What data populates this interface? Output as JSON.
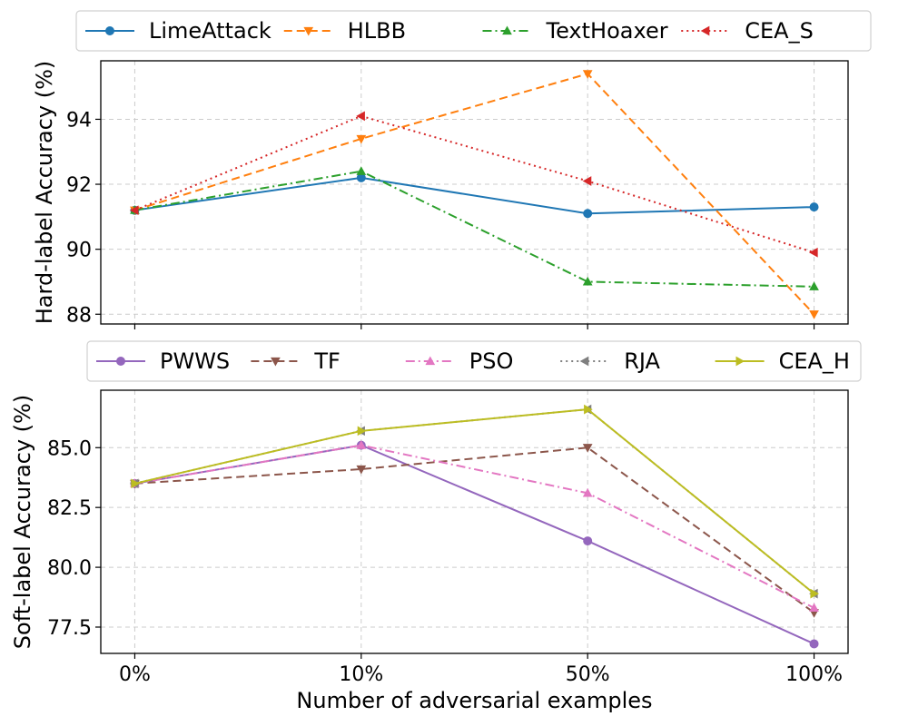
{
  "chart_data": [
    {
      "type": "line",
      "ylabel": "Hard-label Accuracy (%)",
      "xlabel": "",
      "categories": [
        "0%",
        "10%",
        "50%",
        "100%"
      ],
      "ylim": [
        87.7,
        95.8
      ],
      "yticks": [
        88,
        90,
        92,
        94
      ],
      "ytick_labels": [
        "88",
        "90",
        "92",
        "94"
      ],
      "grid": true,
      "legend": {
        "placement": "top",
        "columns": 4
      },
      "series": [
        {
          "name": "LimeAttack",
          "values": [
            91.2,
            92.2,
            91.1,
            91.3
          ],
          "color": "#1f77b4",
          "dash": "solid",
          "marker": "circle"
        },
        {
          "name": "HLBB",
          "values": [
            91.2,
            93.4,
            95.4,
            88.0
          ],
          "color": "#ff7f0e",
          "dash": "dashed",
          "marker": "triangle-down"
        },
        {
          "name": "TextHoaxer",
          "values": [
            91.2,
            92.4,
            89.0,
            88.85
          ],
          "color": "#2ca02c",
          "dash": "dashdot",
          "marker": "triangle-up"
        },
        {
          "name": "CEA_S",
          "values": [
            91.2,
            94.1,
            92.1,
            89.9
          ],
          "color": "#d62728",
          "dash": "dotted",
          "marker": "triangle-left"
        }
      ]
    },
    {
      "type": "line",
      "ylabel": "Soft-label Accuracy (%)",
      "xlabel": "Number of adversarial examples",
      "categories": [
        "0%",
        "10%",
        "50%",
        "100%"
      ],
      "ylim": [
        76.4,
        87.4
      ],
      "yticks": [
        77.5,
        80.0,
        82.5,
        85.0
      ],
      "ytick_labels": [
        "77.5",
        "80.0",
        "82.5",
        "85.0"
      ],
      "grid": true,
      "legend": {
        "placement": "top",
        "columns": 5
      },
      "series": [
        {
          "name": "PWWS",
          "values": [
            83.5,
            85.1,
            81.1,
            76.8
          ],
          "color": "#9467bd",
          "dash": "solid",
          "marker": "circle"
        },
        {
          "name": "TF",
          "values": [
            83.5,
            84.1,
            85.0,
            78.1
          ],
          "color": "#8c564b",
          "dash": "dashed",
          "marker": "triangle-down"
        },
        {
          "name": "PSO",
          "values": [
            83.5,
            85.1,
            83.1,
            78.3
          ],
          "color": "#e377c2",
          "dash": "dashdot",
          "marker": "triangle-up"
        },
        {
          "name": "RJA",
          "values": [
            83.5,
            85.7,
            86.6,
            78.9
          ],
          "color": "#7f7f7f",
          "dash": "dotted",
          "marker": "triangle-left"
        },
        {
          "name": "CEA_H",
          "values": [
            83.5,
            85.7,
            86.6,
            78.9
          ],
          "color": "#bcbd22",
          "dash": "solid",
          "marker": "triangle-right"
        }
      ]
    }
  ]
}
